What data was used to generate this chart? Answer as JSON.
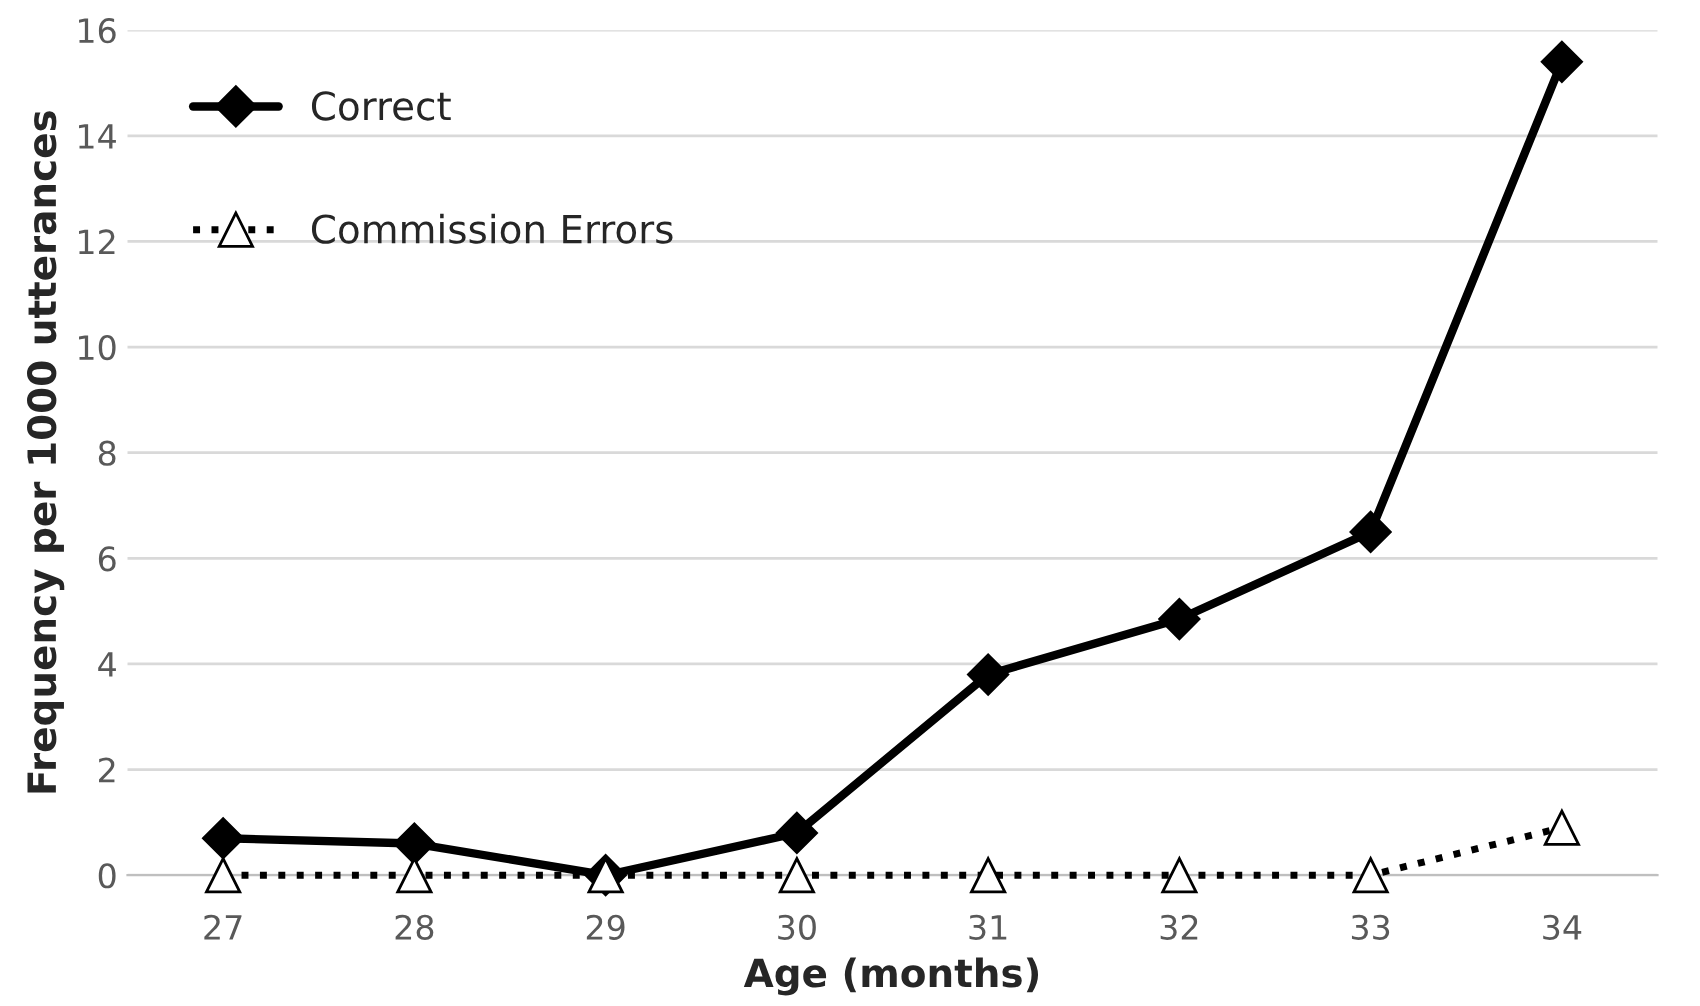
{
  "chart_data": {
    "type": "line",
    "xlabel": "Age (months)",
    "ylabel": "Frequency per 1000 utterances",
    "categories": [
      "27",
      "28",
      "29",
      "30",
      "31",
      "32",
      "33",
      "34"
    ],
    "series": [
      {
        "name": "Correct",
        "color": "#000000",
        "marker": "diamond",
        "line_style": "solid",
        "values": [
          0.7,
          0.6,
          0,
          0.8,
          3.8,
          4.85,
          6.5,
          15.4
        ]
      },
      {
        "name": "Commission Errors",
        "color": "#000000",
        "marker": "triangle",
        "line_style": "dotted",
        "values": [
          0,
          0,
          0,
          0,
          0,
          0,
          0,
          0.9
        ]
      }
    ],
    "ylim": [
      0,
      16
    ],
    "yticks": [
      0,
      2,
      4,
      6,
      8,
      10,
      12,
      14,
      16
    ],
    "grid": "y",
    "legend": "top left"
  }
}
